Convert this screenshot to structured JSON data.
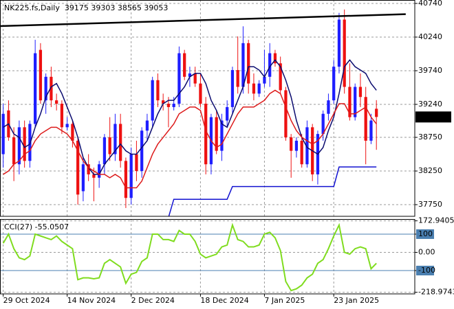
{
  "chart_data": [
    {
      "type": "candlestick",
      "title": "NK225.fs,Daily  39175 39303 38565 39053",
      "open": [
        38500,
        39150,
        38750,
        38350,
        38900,
        38400,
        38950,
        40050,
        39300,
        39650,
        39300,
        39250,
        38900,
        38950,
        38700,
        37950,
        38350,
        38200,
        38150,
        38350,
        38750,
        38500,
        38950,
        38400,
        37850,
        38500,
        38250,
        38850,
        39000,
        39600,
        39300,
        39250,
        39200,
        39250,
        40000,
        39650,
        39700,
        39550,
        39250,
        38350,
        39050,
        38550,
        39000,
        39200,
        39750,
        39500,
        40150,
        39550,
        39400,
        39550,
        39650,
        40000,
        39850,
        39450,
        38750,
        38550,
        38700,
        38350,
        38900,
        38200,
        38800,
        39100,
        39300,
        39800,
        40500,
        39500,
        39050,
        39500,
        39350,
        38700,
        39175
      ],
      "high": [
        39250,
        39300,
        38900,
        39000,
        39000,
        39000,
        40200,
        40150,
        39700,
        39800,
        39400,
        39300,
        39050,
        39000,
        38750,
        38450,
        38500,
        38300,
        38400,
        38800,
        39050,
        39100,
        39100,
        38450,
        38600,
        38700,
        38900,
        39100,
        39650,
        39700,
        39400,
        39350,
        39350,
        40100,
        40050,
        39800,
        39800,
        39700,
        39350,
        39100,
        39150,
        39100,
        39300,
        39800,
        40250,
        40400,
        40200,
        39700,
        39600,
        40050,
        40150,
        40050,
        39950,
        39500,
        38800,
        38750,
        38800,
        39000,
        38950,
        38850,
        39150,
        39400,
        39900,
        40600,
        40650,
        39850,
        39550,
        39700,
        39500,
        39100,
        39303
      ],
      "low": [
        38300,
        38700,
        38100,
        38200,
        38300,
        38300,
        38900,
        39250,
        39100,
        39200,
        39150,
        38800,
        38850,
        38600,
        37750,
        37800,
        38100,
        37800,
        38000,
        38200,
        38400,
        38400,
        38300,
        37700,
        37750,
        38100,
        38150,
        38700,
        38900,
        39200,
        39150,
        38900,
        39150,
        39200,
        39600,
        39500,
        39500,
        39200,
        38200,
        38200,
        38500,
        38400,
        38900,
        39100,
        39400,
        39400,
        39400,
        39300,
        39350,
        39500,
        39500,
        39800,
        39400,
        38700,
        38150,
        38450,
        38300,
        38300,
        38100,
        38050,
        38700,
        39000,
        39250,
        39700,
        39400,
        39000,
        39000,
        39200,
        38350,
        38650,
        38565
      ],
      "close": [
        39100,
        38750,
        38350,
        38900,
        38400,
        38950,
        40000,
        39300,
        39650,
        39300,
        39250,
        38900,
        38950,
        38700,
        37900,
        38350,
        38200,
        38150,
        38350,
        38750,
        38500,
        38950,
        38400,
        37850,
        38500,
        38250,
        38850,
        39000,
        39600,
        39300,
        39250,
        39200,
        39250,
        40000,
        39650,
        39700,
        39550,
        39250,
        38350,
        39050,
        38550,
        39000,
        39200,
        39750,
        39500,
        40150,
        39550,
        39400,
        39550,
        39650,
        40000,
        39850,
        39450,
        38750,
        38550,
        38700,
        38350,
        38900,
        38200,
        38800,
        39100,
        39300,
        39800,
        40500,
        39500,
        39050,
        39500,
        39350,
        38700,
        39000,
        39053
      ],
      "up_color": "#1e1eff",
      "down_color": "#ee1111",
      "series": [
        {
          "color": "#0a0a6e",
          "values": [
            38900,
            38950,
            38800,
            38750,
            38600,
            38650,
            38900,
            39100,
            39350,
            39500,
            39550,
            39400,
            39200,
            39000,
            38750,
            38450,
            38300,
            38200,
            38200,
            38350,
            38450,
            38550,
            38650,
            38550,
            38500,
            38500,
            38600,
            38700,
            38900,
            39100,
            39250,
            39300,
            39300,
            39400,
            39500,
            39650,
            39700,
            39700,
            39550,
            39300,
            39150,
            38950,
            38900,
            39100,
            39300,
            39500,
            39800,
            39800,
            39750,
            39650,
            39800,
            39900,
            39800,
            39600,
            39350,
            39000,
            38750,
            38600,
            38550,
            38500,
            38600,
            38850,
            39050,
            39400,
            39800,
            39900,
            39800,
            39750,
            39700,
            39550,
            39450
          ]
        },
        {
          "color": "#dd1a1a",
          "values": [
            38200,
            38250,
            38350,
            38400,
            38500,
            38550,
            38700,
            38800,
            38850,
            38900,
            38900,
            38850,
            38800,
            38700,
            38550,
            38400,
            38300,
            38250,
            38200,
            38200,
            38150,
            38200,
            38150,
            38000,
            38000,
            38000,
            38100,
            38300,
            38500,
            38650,
            38750,
            38850,
            38950,
            39100,
            39150,
            39200,
            39200,
            39150,
            38850,
            38700,
            38600,
            38650,
            38800,
            38950,
            39100,
            39200,
            39200,
            39200,
            39250,
            39300,
            39400,
            39450,
            39400,
            39200,
            39000,
            38850,
            38750,
            38700,
            38650,
            38700,
            38800,
            38950,
            39100,
            39250,
            39250,
            39100,
            39100,
            39150,
            39200,
            39050,
            38950
          ]
        },
        {
          "color": "#1010d0",
          "values": [
            null,
            null,
            null,
            null,
            null,
            null,
            null,
            null,
            null,
            null,
            null,
            null,
            null,
            null,
            null,
            null,
            null,
            null,
            null,
            null,
            null,
            null,
            null,
            null,
            null,
            null,
            null,
            null,
            null,
            null,
            null,
            37560,
            37830,
            37830,
            37830,
            37830,
            37830,
            37830,
            37830,
            37830,
            37830,
            37830,
            37830,
            38020,
            38020,
            38020,
            38020,
            38020,
            38020,
            38020,
            38020,
            38020,
            38020,
            38020,
            38020,
            38020,
            38020,
            38020,
            38020,
            38020,
            38020,
            38020,
            38020,
            38310,
            38310,
            38310,
            38310,
            38310,
            38310,
            38310,
            38310
          ]
        },
        {
          "color": "#000000",
          "x": [
            -0.6,
            75.5
          ],
          "values": [
            40403,
            40580
          ]
        }
      ],
      "last_price": 39053,
      "xlim": [
        -0.6,
        77.2
      ],
      "xticks": [
        {
          "value": 0,
          "label": "29 Oct 2024"
        },
        {
          "value": 12,
          "label": "14 Nov 2024"
        },
        {
          "value": 24,
          "label": "2 Dec 2024"
        },
        {
          "value": 37,
          "label": "18 Dec 2024"
        },
        {
          "value": 49,
          "label": "7 Jan 2025"
        },
        {
          "value": 62,
          "label": "23 Jan 2025"
        }
      ],
      "ylim": [
        37577,
        40791
      ],
      "yticks": [
        40740,
        40240,
        39740,
        39240,
        38750,
        38250,
        37750
      ],
      "grid": true
    },
    {
      "type": "line",
      "title": "CCI(27) -55.0507",
      "color": "#7fdc1e",
      "values": [
        50,
        100,
        20,
        -30,
        -40,
        -20,
        100,
        90,
        80,
        70,
        90,
        60,
        40,
        20,
        -150,
        -140,
        -140,
        -145,
        -140,
        -60,
        -40,
        -60,
        -80,
        -170,
        -120,
        -110,
        -50,
        -30,
        100,
        100,
        70,
        70,
        60,
        120,
        100,
        100,
        60,
        -10,
        -30,
        -20,
        -10,
        30,
        40,
        150,
        70,
        60,
        30,
        30,
        40,
        100,
        110,
        80,
        10,
        -160,
        -210,
        -200,
        -180,
        -140,
        -120,
        -60,
        -40,
        20,
        90,
        150,
        0,
        -10,
        20,
        30,
        20,
        -90,
        -60
      ],
      "xlim": [
        -0.6,
        77.2
      ],
      "ylim": [
        -228,
        179
      ],
      "yticks": [
        172.9405,
        100,
        {
          "value": 0,
          "label": "0.00"
        },
        -100,
        -218.9743
      ],
      "levels": [
        100,
        -100
      ],
      "level_color": "#4a7fb0",
      "grid": true
    }
  ]
}
